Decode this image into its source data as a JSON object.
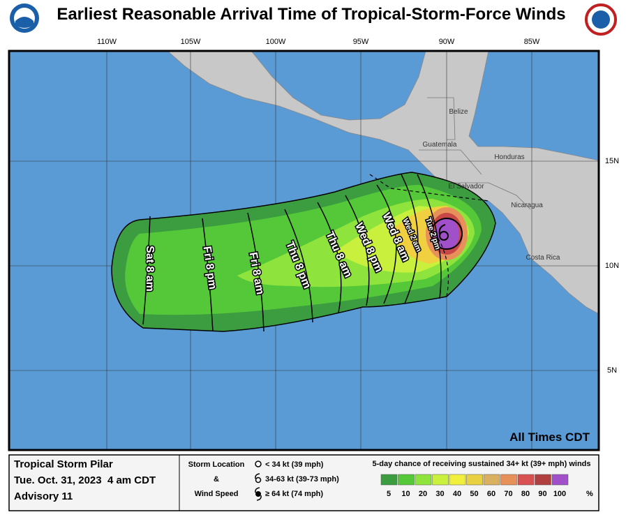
{
  "header": {
    "title": "Earliest Reasonable Arrival Time of Tropical-Storm-Force Winds"
  },
  "map": {
    "lon_labels": [
      "110W",
      "105W",
      "100W",
      "95W",
      "90W",
      "85W"
    ],
    "lat_labels": [
      "15N",
      "10N",
      "5N"
    ],
    "country_labels": [
      "Belize",
      "Guatemala",
      "Honduras",
      "El Salvador",
      "Nicaragua",
      "Costa Rica"
    ],
    "time_labels": [
      "Sat 8 am",
      "Fri 8 pm",
      "Fri 8 am",
      "Thu 8 pm",
      "Thu 8 am",
      "Wed 8 pm",
      "Wed 8 am",
      "Wed 2 am",
      "Tue 2 pm"
    ],
    "note": "All Times CDT"
  },
  "legend": {
    "storm": "Tropical Storm Pilar",
    "date": "Tue. Oct. 31, 2023  4 am CDT",
    "advisory": "Advisory 11",
    "location_title": "Storm Location",
    "amp": "&",
    "speed_title": "Wind Speed",
    "symbols": [
      "< 34 kt (39 mph)",
      "34-63 kt (39-73 mph)",
      "≥ 64 kt (74 mph)"
    ],
    "scale_title": "5-day chance of receiving sustained 34+ kt (39+ mph) winds",
    "scale": [
      5,
      10,
      20,
      30,
      40,
      50,
      60,
      70,
      80,
      90,
      100
    ],
    "scale_unit": "%",
    "scale_colors": [
      "#3c9d40",
      "#54c838",
      "#8ee43c",
      "#c8f03c",
      "#f0f03c",
      "#e8d040",
      "#d8b060",
      "#e8905a",
      "#d85050",
      "#b04040",
      "#a050c8"
    ]
  }
}
